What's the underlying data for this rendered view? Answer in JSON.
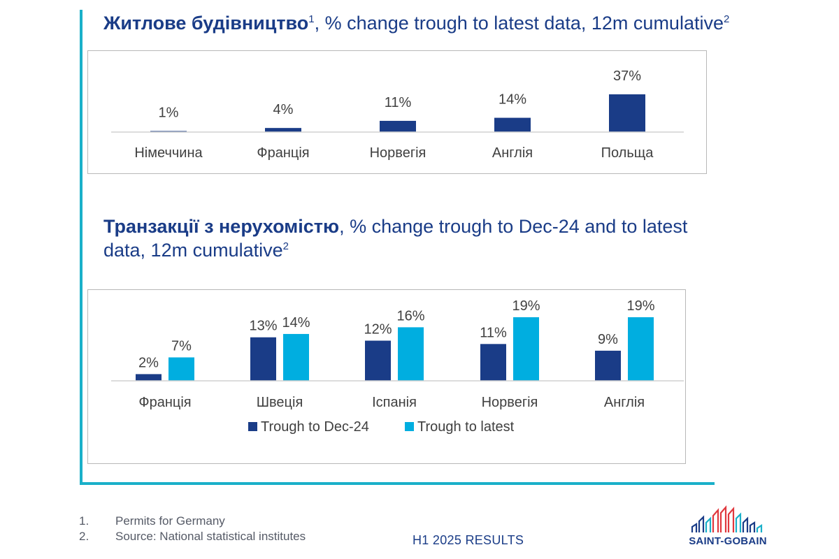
{
  "colors": {
    "accent_line": "#1ab0c9",
    "dark_series": "#1a3c87",
    "light_series": "#00aee0",
    "title_text": "#1a3c87"
  },
  "titles": {
    "chart1_bold": "Житлове будівництво",
    "chart1_sup1": "1",
    "chart1_rest": ", % change trough to latest data, 12m cumulative",
    "chart1_sup2": "2",
    "chart2_bold": "Транзакції з нерухомістю",
    "chart2_rest": ", % change trough to Dec-24 and to latest data, 12m cumulative",
    "chart2_sup": "2"
  },
  "chart_data": [
    {
      "type": "bar",
      "title": "Житлове будівництво, % change trough to latest data, 12m cumulative",
      "categories": [
        "Німеччина",
        "Франція",
        "Норвегія",
        "Англія",
        "Польща"
      ],
      "values": [
        1,
        4,
        11,
        14,
        37
      ],
      "data_labels": [
        "1%",
        "4%",
        "11%",
        "14%",
        "37%"
      ],
      "ylim": [
        0,
        37
      ],
      "xlabel": "",
      "ylabel": "",
      "grid": false
    },
    {
      "type": "bar",
      "title": "Транзакції з нерухомістю, % change trough to Dec-24 and to latest data, 12m cumulative",
      "categories": [
        "Франція",
        "Швеція",
        "Іспанія",
        "Норвегія",
        "Англія"
      ],
      "series": [
        {
          "name": "Trough to Dec-24",
          "values": [
            2,
            13,
            12,
            11,
            9
          ],
          "labels": [
            "2%",
            "13%",
            "12%",
            "11%",
            "9%"
          ]
        },
        {
          "name": "Trough to latest",
          "values": [
            7,
            14,
            16,
            19,
            19
          ],
          "labels": [
            "7%",
            "14%",
            "16%",
            "19%",
            "19%"
          ]
        }
      ],
      "ylim": [
        0,
        19
      ],
      "legend": "bottom",
      "xlabel": "",
      "ylabel": "",
      "grid": false
    }
  ],
  "footnotes": [
    {
      "num": "1.",
      "text": "Permits for Germany"
    },
    {
      "num": "2.",
      "text": "Source: National statistical institutes"
    }
  ],
  "footer": {
    "label": "H1 2025 RESULTS"
  },
  "logo": {
    "text": "SAINT-GOBAIN"
  }
}
